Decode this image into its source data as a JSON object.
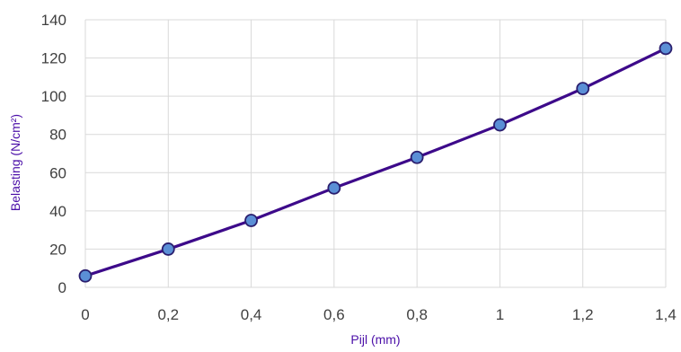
{
  "chart_data": {
    "type": "line",
    "title": "",
    "xlabel": "Pijl (mm)",
    "ylabel": "Belasting (N/cm²)",
    "x": [
      0,
      0.2,
      0.4,
      0.6,
      0.8,
      1.0,
      1.2,
      1.4
    ],
    "x_tick_labels": [
      "0",
      "0,2",
      "0,4",
      "0,6",
      "0,8",
      "1",
      "1,2",
      "1,4"
    ],
    "y_ticks": [
      0,
      20,
      40,
      60,
      80,
      100,
      120,
      140
    ],
    "y_tick_labels": [
      "0",
      "20",
      "40",
      "60",
      "80",
      "100",
      "120",
      "140"
    ],
    "xlim": [
      0,
      1.4
    ],
    "ylim": [
      0,
      140
    ],
    "grid": true,
    "legend": "none",
    "series": [
      {
        "values": [
          6,
          20,
          35,
          52,
          68,
          85,
          104,
          125
        ]
      }
    ],
    "colors": {
      "line": "#3d0a8a",
      "marker_fill": "#5b8fd6",
      "marker_stroke": "#2a1e6e",
      "grid": "#d9d9d9",
      "axis_title": "#4b0fa8",
      "tick_text": "#404040"
    }
  }
}
